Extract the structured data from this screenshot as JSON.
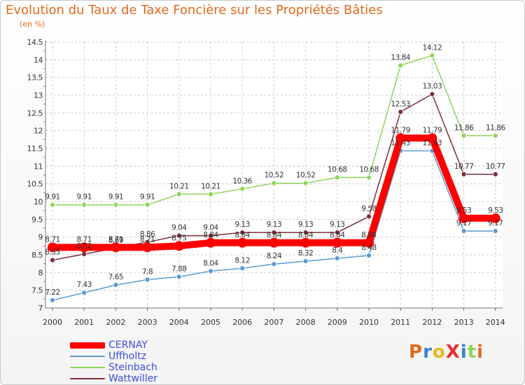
{
  "header": {
    "title": "Evolution du Taux de Taxe Foncière sur les Propriétés Bâties",
    "unit": "(en %)"
  },
  "logo": {
    "text": "ProXiti",
    "letters": [
      "P",
      "r",
      "o",
      "X",
      "i",
      "t",
      "i"
    ]
  },
  "colors": {
    "title": "#e06a1a",
    "legend_text": "#3a4fe0",
    "cernay": "#ff0000",
    "uffholtz": "#5a9bd0",
    "steinbach": "#8ed65a",
    "wattwiller": "#7a2e3a",
    "logo": [
      "#e06a1a",
      "#3a7fd0",
      "#e8b820",
      "#e83030",
      "#3a7fd0",
      "#8ed65a",
      "#e06a1a"
    ]
  },
  "chart_data": {
    "type": "line",
    "title": "Evolution du Taux de Taxe Foncière sur les Propriétés Bâties",
    "ylabel": "(en %)",
    "xlabel": "",
    "ylim": [
      7,
      14.5
    ],
    "yticks": [
      "7",
      "7.5",
      "8",
      "8.5",
      "9",
      "9.5",
      "10",
      "10.5",
      "11",
      "11.5",
      "12",
      "12.5",
      "13",
      "13.5",
      "14",
      "14.5"
    ],
    "ytick_values": [
      7,
      7.5,
      8,
      8.5,
      9,
      9.5,
      10,
      10.5,
      11,
      11.5,
      12,
      12.5,
      13,
      13.5,
      14,
      14.5
    ],
    "categories": [
      "2000",
      "2001",
      "2002",
      "2003",
      "2004",
      "2005",
      "2006",
      "2007",
      "2008",
      "2009",
      "2010",
      "2011",
      "2012",
      "2013",
      "2014"
    ],
    "legend_position": "bottom-left",
    "series": [
      {
        "name": "Steinbach",
        "key": "steinbach",
        "values": [
          9.91,
          9.91,
          9.91,
          9.91,
          10.21,
          10.21,
          10.36,
          10.52,
          10.52,
          10.68,
          10.68,
          13.84,
          14.12,
          11.86,
          11.86
        ],
        "labels": [
          "9.91",
          "9.91",
          "9.91",
          "9.91",
          "10.21",
          "10.21",
          "10.36",
          "10.52",
          "10.52",
          "10.68",
          "10.68",
          "13.84",
          "14.12",
          "11.86",
          "11.86"
        ]
      },
      {
        "name": "Wattwiller",
        "key": "wattwiller",
        "values": [
          8.35,
          8.52,
          8.69,
          8.86,
          9.04,
          9.04,
          9.13,
          9.13,
          9.13,
          9.13,
          9.58,
          12.53,
          13.03,
          10.77,
          10.77
        ],
        "labels": [
          "8.35",
          "8.52",
          "8.69",
          "8.86",
          "9.04",
          "9.04",
          "9.13",
          "9.13",
          "9.13",
          "9.13",
          "9.58",
          "12.53",
          "13.03",
          "10.77",
          "10.77"
        ]
      },
      {
        "name": "Uffholtz",
        "key": "uffholtz",
        "values": [
          7.22,
          7.43,
          7.65,
          7.8,
          7.88,
          8.04,
          8.12,
          8.24,
          8.32,
          8.4,
          8.48,
          11.43,
          11.43,
          9.17,
          9.17
        ],
        "labels": [
          "7.22",
          "7.43",
          "7.65",
          "7.8",
          "7.88",
          "8.04",
          "8.12",
          "8.24",
          "8.32",
          "8.4",
          "8.48",
          "11.43",
          "11.43",
          "9.17",
          "9.17"
        ]
      },
      {
        "name": "CERNAY",
        "key": "cernay",
        "values": [
          8.71,
          8.71,
          8.71,
          8.71,
          8.75,
          8.84,
          8.84,
          8.84,
          8.84,
          8.84,
          8.84,
          11.79,
          11.79,
          9.53,
          9.53
        ],
        "labels": [
          "8.71",
          "8.71",
          "8.71",
          "8.71",
          "8.75",
          "8.84",
          "8.84",
          "8.84",
          "8.84",
          "8.84",
          "8.84",
          "11.79",
          "11.79",
          "9.53",
          "9.53"
        ]
      }
    ],
    "legend_order": [
      "cernay",
      "uffholtz",
      "steinbach",
      "wattwiller"
    ]
  }
}
